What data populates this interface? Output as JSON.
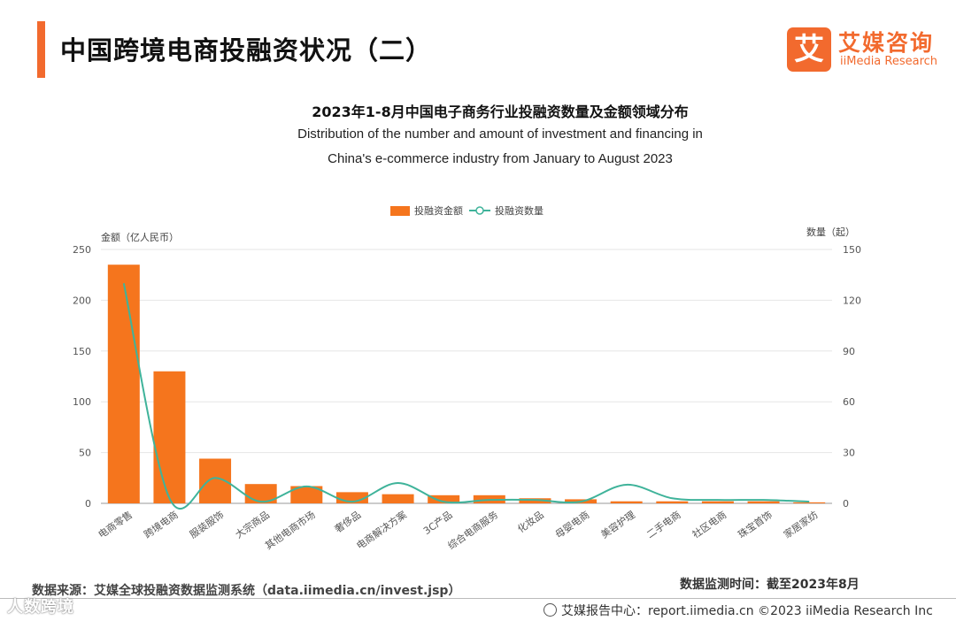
{
  "page": {
    "title": "中国跨境电商投融资状况（二）",
    "source": "数据来源：艾媒全球投融资数据监测系统（data.iimedia.cn/invest.jsp）",
    "monitor_time": "数据监测时间：截至2023年8月",
    "footer": "艾媒报告中心：report.iimedia.cn  ©2023  iiMedia Research  Inc",
    "watermark": "人数跨境"
  },
  "logo": {
    "mark": "艾",
    "name_cn": "艾媒咨询",
    "name_en": "iiMedia Research"
  },
  "colors": {
    "bar": "#f5751d",
    "line": "#3fb39a",
    "accent": "#f26a2e"
  },
  "chart_data": {
    "type": "bar",
    "title": "2023年1-8月中国电子商务行业投融资数量及金额领域分布",
    "subtitle_line1": "Distribution of the number and amount of investment and financing in",
    "subtitle_line2": "China's e-commerce industry from January to August 2023",
    "legend": {
      "bar": "投融资金额",
      "line": "投融资数量",
      "position": "top-center"
    },
    "ylabel_left": "金额（亿人民币）",
    "ylabel_right": "数量（起）",
    "ylim_left": [
      0,
      250
    ],
    "ylim_right": [
      0,
      150
    ],
    "yticks_left": [
      0,
      50,
      100,
      150,
      200,
      250
    ],
    "yticks_right": [
      0,
      30,
      60,
      90,
      120,
      150
    ],
    "grid": true,
    "categories": [
      "电商零售",
      "跨境电商",
      "服装服饰",
      "大宗商品",
      "其他电商市场",
      "奢侈品",
      "电商解决方案",
      "3C产品",
      "综合电商服务",
      "化妆品",
      "母婴电商",
      "美容护理",
      "二手电商",
      "社区电商",
      "珠宝首饰",
      "家居家纺"
    ],
    "series": [
      {
        "name": "投融资金额",
        "axis": "left",
        "type": "bar",
        "values": [
          235,
          130,
          44,
          19,
          17,
          11,
          9,
          8,
          8,
          5,
          4,
          2,
          2,
          2,
          2,
          1
        ]
      },
      {
        "name": "投融资数量",
        "axis": "right",
        "type": "line",
        "values": [
          130,
          3,
          15,
          1,
          10,
          1,
          12,
          1,
          2,
          2,
          1,
          11,
          3,
          2,
          2,
          1
        ]
      }
    ]
  }
}
